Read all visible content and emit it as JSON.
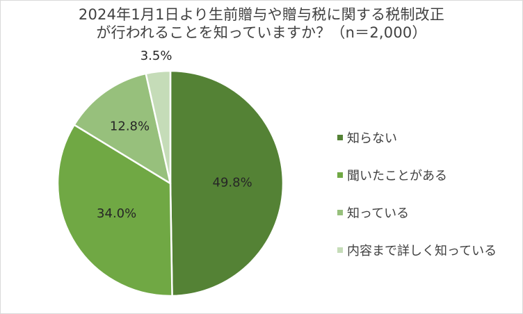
{
  "chart_data": {
    "type": "pie",
    "title_lines": [
      "2024年1月1日より生前贈与や贈与税に関する税制改正",
      "が行われることを知っていますか？（n＝2,000）"
    ],
    "slices": [
      {
        "name": "知らない",
        "value": 49.8,
        "label": "49.8%",
        "color": "#548235"
      },
      {
        "name": "聞いたことがある",
        "value": 34.0,
        "label": "34.0%",
        "color": "#70a844"
      },
      {
        "name": "知っている",
        "value": 12.8,
        "label": "12.8%",
        "color": "#97c07c"
      },
      {
        "name": "内容まで詳しく知っている",
        "value": 3.5,
        "label": "3.5%",
        "color": "#c5dcb8"
      }
    ],
    "legend_position": "right"
  }
}
